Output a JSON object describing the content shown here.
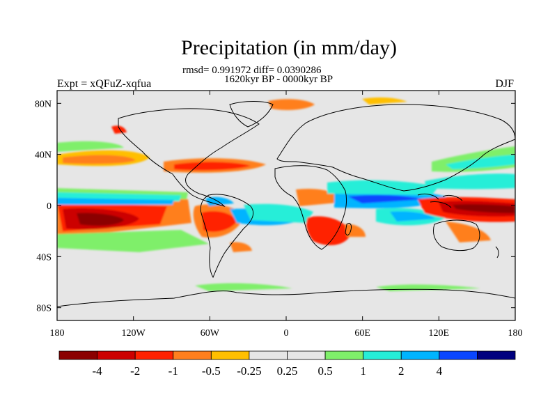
{
  "header": {
    "title": "Precipitation (in mm/day)",
    "stats": "rmsd= 0.991972 diff= 0.0390286",
    "period": "1620kyr BP - 0000kyr BP",
    "experiment": "Expt = xQFuZ-xqfua",
    "season": "DJF"
  },
  "axes": {
    "x_ticks": [
      {
        "label": "180",
        "lon": -180
      },
      {
        "label": "120W",
        "lon": -120
      },
      {
        "label": "60W",
        "lon": -60
      },
      {
        "label": "0",
        "lon": 0
      },
      {
        "label": "60E",
        "lon": 60
      },
      {
        "label": "120E",
        "lon": 120
      },
      {
        "label": "180",
        "lon": 180
      }
    ],
    "y_ticks": [
      {
        "label": "80N",
        "lat": 80
      },
      {
        "label": "40N",
        "lat": 40
      },
      {
        "label": "0",
        "lat": 0
      },
      {
        "label": "40S",
        "lat": -40
      },
      {
        "label": "80S",
        "lat": -80
      }
    ]
  },
  "colorbar": {
    "colors": [
      "#8b0000",
      "#cc0000",
      "#ff2200",
      "#ff7f1e",
      "#ffbf00",
      "#e6e6e6",
      "#e6e6e6",
      "#7fef6a",
      "#26eed8",
      "#00b4ff",
      "#0a46ff",
      "#00007f"
    ],
    "labels": [
      "-4",
      "-2",
      "-1",
      "-0.5",
      "-0.25",
      "0.25",
      "0.5",
      "1",
      "2",
      "4"
    ]
  }
}
